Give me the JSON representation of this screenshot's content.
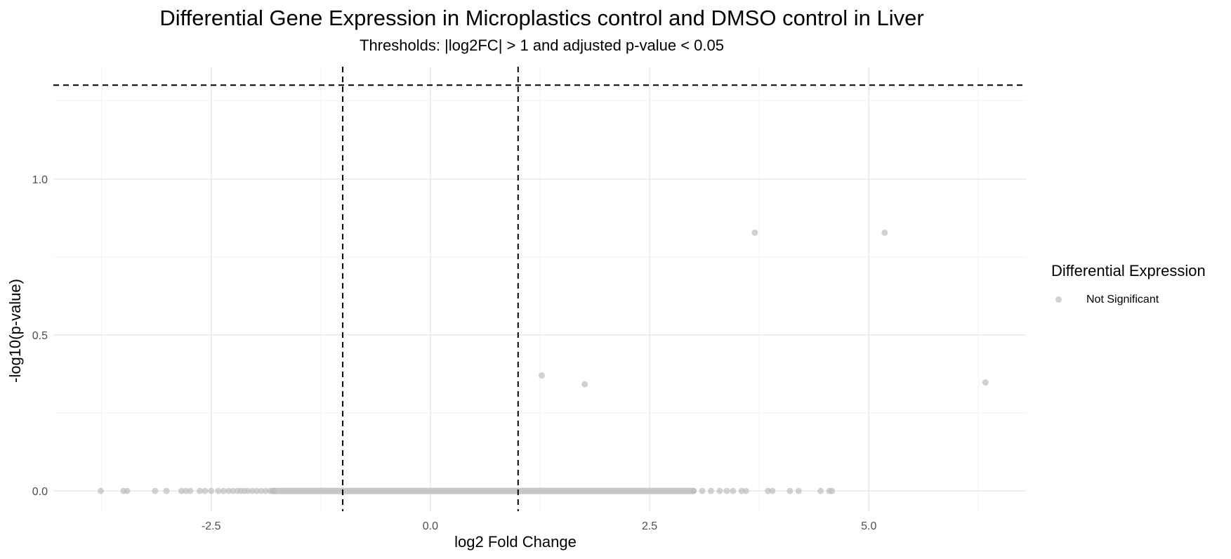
{
  "chart_data": {
    "type": "scatter",
    "title": "Differential Gene Expression in Microplastics control and DMSO control in Liver",
    "subtitle": "Thresholds: |log2FC| > 1 and adjusted p-value < 0.05",
    "xlabel": "log2 Fold Change",
    "ylabel": "-log10(p-value)",
    "xlim": [
      -4.3,
      6.8
    ],
    "ylim": [
      -0.065,
      1.36
    ],
    "x_ticks": [
      -2.5,
      0.0,
      2.5,
      5.0
    ],
    "x_tick_labels": [
      "-2.5",
      "0.0",
      "2.5",
      "5.0"
    ],
    "y_ticks": [
      0.0,
      0.5,
      1.0
    ],
    "y_tick_labels": [
      "0.0",
      "0.5",
      "1.0"
    ],
    "grid": true,
    "threshold_lines": {
      "x": [
        -1,
        1
      ],
      "y": 1.301,
      "style": "dashed"
    },
    "legend": {
      "title": "Differential Expression",
      "position": "right",
      "entries": [
        {
          "label": "Not Significant",
          "color": "#bebebe"
        }
      ]
    },
    "series": [
      {
        "name": "Not Significant",
        "color": "#bebebe",
        "points": [
          [
            3.7,
            0.828
          ],
          [
            5.18,
            0.828
          ],
          [
            1.27,
            0.37
          ],
          [
            1.76,
            0.342
          ],
          [
            6.33,
            0.348
          ],
          [
            -3.76,
            0
          ],
          [
            -3.5,
            0
          ],
          [
            -3.46,
            0
          ],
          [
            -3.14,
            0
          ],
          [
            -3.01,
            0
          ],
          [
            -2.84,
            0
          ],
          [
            -2.79,
            0
          ],
          [
            -2.74,
            0
          ],
          [
            -2.63,
            0
          ],
          [
            -2.57,
            0
          ],
          [
            -2.5,
            0
          ],
          [
            -2.42,
            0
          ],
          [
            -2.36,
            0
          ],
          [
            -2.3,
            0
          ],
          [
            -2.25,
            0
          ],
          [
            -2.2,
            0
          ],
          [
            -2.16,
            0
          ],
          [
            -2.12,
            0
          ],
          [
            -2.08,
            0
          ],
          [
            -2.03,
            0
          ],
          [
            -1.98,
            0
          ],
          [
            -1.93,
            0
          ],
          [
            -1.88,
            0
          ],
          [
            -1.83,
            0
          ],
          [
            -1.78,
            0
          ],
          [
            3.55,
            0
          ],
          [
            3.6,
            0
          ],
          [
            3.85,
            0
          ],
          [
            3.9,
            0
          ],
          [
            4.1,
            0
          ],
          [
            4.2,
            0
          ],
          [
            4.45,
            0
          ],
          [
            4.55,
            0
          ],
          [
            4.58,
            0
          ],
          [
            3.45,
            0
          ],
          [
            3.38,
            0
          ],
          [
            3.3,
            0
          ],
          [
            3.2,
            0
          ],
          [
            3.1,
            0
          ],
          [
            3.0,
            0
          ]
        ],
        "dense_band": {
          "x_range": [
            -1.8,
            3.0
          ],
          "y": 0
        }
      }
    ]
  }
}
